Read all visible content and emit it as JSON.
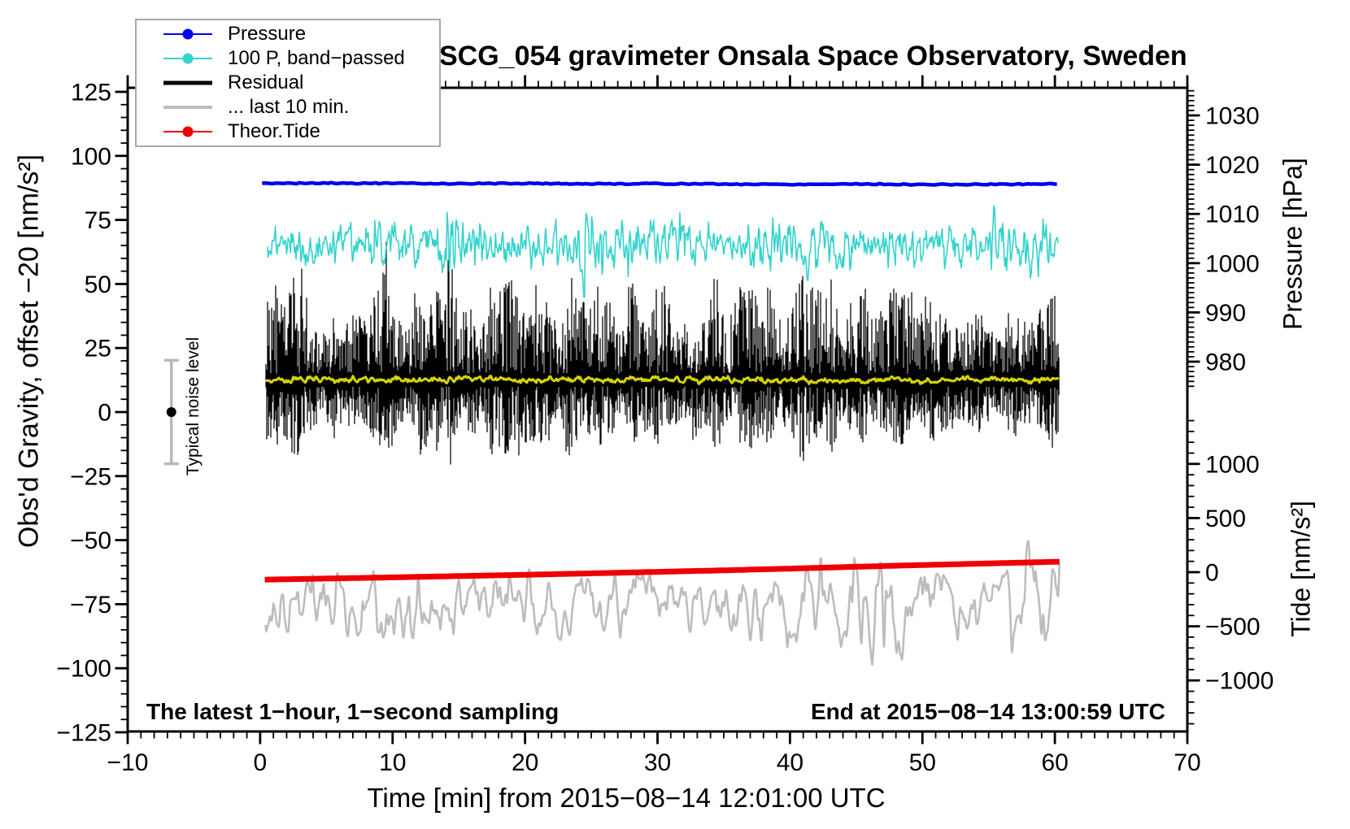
{
  "chart_data": {
    "type": "line",
    "title": "SCG_054 gravimeter Onsala Space Observatory, Sweden",
    "xlabel": "Time [min] from 2015−08−14 12:01:00 UTC",
    "ylabel_left": "Obs'd Gravity, offset −20 [nm/s²]",
    "ylabel_right_top": "Pressure [hPa]",
    "ylabel_right_bottom": "Tide [nm/s²]",
    "annotation_left": "The latest 1−hour, 1−second sampling",
    "annotation_right": "End at 2015−08−14 13:00:59 UTC",
    "grid": false,
    "axes": {
      "time": {
        "label": "Time [min]",
        "min": -10,
        "max": 70,
        "major": 10,
        "minor": 1
      },
      "gravity": {
        "label": "Obs'd Gravity",
        "min": -125,
        "max": 125,
        "major": 25,
        "minor": 5
      },
      "pressure": {
        "label": "Pressure",
        "min": 980,
        "max": 1030,
        "major": 10,
        "minor": 1
      },
      "tide": {
        "label": "Tide",
        "min": -1500,
        "max": 1000,
        "major": 500,
        "minor": 100
      }
    },
    "legend": [
      {
        "label": "Pressure",
        "color": "#0000ee",
        "marker": "dot",
        "line_width": 2
      },
      {
        "label": "100 P, band−passed",
        "color": "#33d3cc",
        "marker": "dot",
        "line_width": 2
      },
      {
        "label": "Residual",
        "color": "#000000",
        "marker": "none",
        "line_width": 5
      },
      {
        "label": "... last 10 min.",
        "color": "#bdbdbd",
        "marker": "none",
        "line_width": 4
      },
      {
        "label": "Theor.Tide",
        "color": "#ee0000",
        "marker": "dot",
        "line_width": 2
      }
    ],
    "noise_bar": {
      "label": "Typical noise level",
      "time_min": -6.7,
      "center": 0,
      "half_range": 20.2,
      "cap_halfwidth": 9,
      "color": "#b9b9b9",
      "dot_color": "#000000"
    },
    "series": [
      {
        "name": "Pressure",
        "axis": "pressure",
        "color": "#0000ee",
        "width": 4.5,
        "render": "line",
        "t_range": [
          0.15,
          60.3
        ],
        "step": 0.2,
        "jitter": 0.12,
        "points": [
          [
            0.15,
            1016.2
          ],
          [
            5,
            1016.25
          ],
          [
            10,
            1016.2
          ],
          [
            15,
            1016.15
          ],
          [
            20,
            1016.2
          ],
          [
            25,
            1016.1
          ],
          [
            30,
            1016.15
          ],
          [
            35,
            1016.05
          ],
          [
            40,
            1016.0
          ],
          [
            45,
            1016.1
          ],
          [
            50,
            1015.95
          ],
          [
            55,
            1016.0
          ],
          [
            60.3,
            1016.1
          ]
        ]
      },
      {
        "name": "Residual",
        "axis": "gravity",
        "color": "#000000",
        "render": "band",
        "t_range": [
          0.4,
          60.35
        ],
        "mean": 12.5,
        "down_ratio": 0.72,
        "amp_up": [
          [
            0.4,
            30
          ],
          [
            1.5,
            42
          ],
          [
            3,
            38
          ],
          [
            5,
            30
          ],
          [
            7,
            35
          ],
          [
            9,
            40
          ],
          [
            11,
            32
          ],
          [
            13.5,
            48
          ],
          [
            15,
            38
          ],
          [
            17,
            33
          ],
          [
            19,
            42
          ],
          [
            21,
            33
          ],
          [
            23,
            44
          ],
          [
            25,
            36
          ],
          [
            27,
            30
          ],
          [
            29.5,
            42
          ],
          [
            31.5,
            32
          ],
          [
            33.5,
            30
          ],
          [
            36.5,
            44
          ],
          [
            38.5,
            36
          ],
          [
            41,
            46
          ],
          [
            43,
            34
          ],
          [
            45,
            30
          ],
          [
            47.5,
            34
          ],
          [
            49.5,
            28
          ],
          [
            51.5,
            30
          ],
          [
            53.5,
            32
          ],
          [
            55.5,
            28
          ],
          [
            57,
            30
          ],
          [
            58.5,
            40
          ],
          [
            60.35,
            34
          ]
        ]
      },
      {
        "name": "100 P, band−passed",
        "axis": "gravity",
        "color": "#33d3cc",
        "width": 1.6,
        "render": "noisy",
        "t_range": [
          0.55,
          60.3
        ],
        "step": 0.06,
        "w1": 0.8,
        "w2": 0.45,
        "ctrl1": 0.13,
        "ctrl2": 0.05,
        "base": [
          [
            0.55,
            66
          ],
          [
            10,
            65.5
          ],
          [
            20,
            65.5
          ],
          [
            30,
            65
          ],
          [
            40,
            64.5
          ],
          [
            50,
            64.5
          ],
          [
            60.3,
            64
          ]
        ],
        "amp": [
          [
            0.55,
            7
          ],
          [
            2,
            8
          ],
          [
            4,
            9
          ],
          [
            6,
            7
          ],
          [
            8,
            11
          ],
          [
            10,
            9
          ],
          [
            12,
            10
          ],
          [
            14,
            12
          ],
          [
            15.5,
            10
          ],
          [
            17,
            9
          ],
          [
            19,
            8
          ],
          [
            21,
            10
          ],
          [
            23,
            9
          ],
          [
            24.3,
            14
          ],
          [
            25.5,
            10
          ],
          [
            27,
            11
          ],
          [
            28.5,
            12
          ],
          [
            30,
            10
          ],
          [
            31.5,
            12
          ],
          [
            33,
            9
          ],
          [
            34.5,
            8
          ],
          [
            36,
            7
          ],
          [
            37.5,
            10
          ],
          [
            39,
            11
          ],
          [
            40.5,
            8
          ],
          [
            42,
            10
          ],
          [
            43.5,
            8
          ],
          [
            45,
            9
          ],
          [
            46.5,
            7
          ],
          [
            48,
            8
          ],
          [
            50,
            9
          ],
          [
            52,
            10
          ],
          [
            54,
            9
          ],
          [
            55.5,
            12
          ],
          [
            57,
            10
          ],
          [
            58.5,
            11
          ],
          [
            60.3,
            8
          ]
        ],
        "spikes": [
          {
            "t": 24.45,
            "dv": -26,
            "w": 0.12
          },
          {
            "t": 24.62,
            "dv": 13,
            "w": 0.09
          },
          {
            "t": 14.3,
            "dv": -11,
            "w": 0.1
          },
          {
            "t": 41.3,
            "dv": -13,
            "w": 0.1
          },
          {
            "t": 55.4,
            "dv": 9,
            "w": 0.09
          }
        ]
      },
      {
        "name": "Residual mean (band-passed)",
        "axis": "gravity",
        "color": "#d4d400",
        "width": 3,
        "render": "noisy",
        "t_range": [
          0.4,
          60.3
        ],
        "step": 0.06,
        "w1": 0.75,
        "w2": 0.5,
        "ctrl1": 0.28,
        "ctrl2": 0.09,
        "base": [
          [
            0.4,
            12.9
          ],
          [
            10,
            12.7
          ],
          [
            20,
            12.5
          ],
          [
            30,
            12.7
          ],
          [
            40,
            12.5
          ],
          [
            50,
            12.3
          ],
          [
            60.3,
            12.6
          ]
        ],
        "amp": [
          [
            0.4,
            1.4
          ],
          [
            60.3,
            1.4
          ]
        ],
        "spikes": []
      },
      {
        "name": "... last 10 min.",
        "axis": "tide",
        "color": "#bdbdbd",
        "width": 2.6,
        "render": "noisy",
        "t_range": [
          0.4,
          60.35
        ],
        "step": 0.05,
        "w1": 0.85,
        "w2": 0.3,
        "ctrl1": 0.38,
        "ctrl2": 0.14,
        "base": [
          [
            0.4,
            -300
          ],
          [
            10,
            -320
          ],
          [
            20,
            -310
          ],
          [
            30,
            -300
          ],
          [
            40,
            -310
          ],
          [
            47,
            -350
          ],
          [
            53,
            -300
          ],
          [
            60.35,
            -280
          ]
        ],
        "amp": [
          [
            0.4,
            380
          ],
          [
            3,
            340
          ],
          [
            6,
            380
          ],
          [
            9,
            400
          ],
          [
            12,
            380
          ],
          [
            15,
            420
          ],
          [
            18,
            380
          ],
          [
            21,
            330
          ],
          [
            24,
            340
          ],
          [
            27,
            330
          ],
          [
            30,
            300
          ],
          [
            33,
            280
          ],
          [
            36,
            380
          ],
          [
            39,
            400
          ],
          [
            42,
            450
          ],
          [
            44,
            520
          ],
          [
            46,
            600
          ],
          [
            47.5,
            650
          ],
          [
            49,
            420
          ],
          [
            51,
            340
          ],
          [
            53,
            320
          ],
          [
            55,
            400
          ],
          [
            57,
            500
          ],
          [
            59,
            580
          ],
          [
            60.35,
            600
          ]
        ],
        "spikes": [
          {
            "t": 47.1,
            "dv": -620,
            "w": 0.12
          }
        ]
      },
      {
        "name": "Theor.Tide",
        "axis": "tide",
        "color": "#ee0000",
        "width": 7,
        "render": "line",
        "t_range": [
          0.35,
          60.35
        ],
        "step": 0.25,
        "jitter": 0,
        "points": [
          [
            0.35,
            -69
          ],
          [
            5,
            -59
          ],
          [
            10,
            -48
          ],
          [
            15,
            -36
          ],
          [
            20,
            -24
          ],
          [
            25,
            -11
          ],
          [
            30,
            3
          ],
          [
            35,
            17
          ],
          [
            40,
            33
          ],
          [
            45,
            50
          ],
          [
            50,
            66
          ],
          [
            55,
            81
          ],
          [
            60.35,
            97
          ]
        ]
      }
    ]
  }
}
